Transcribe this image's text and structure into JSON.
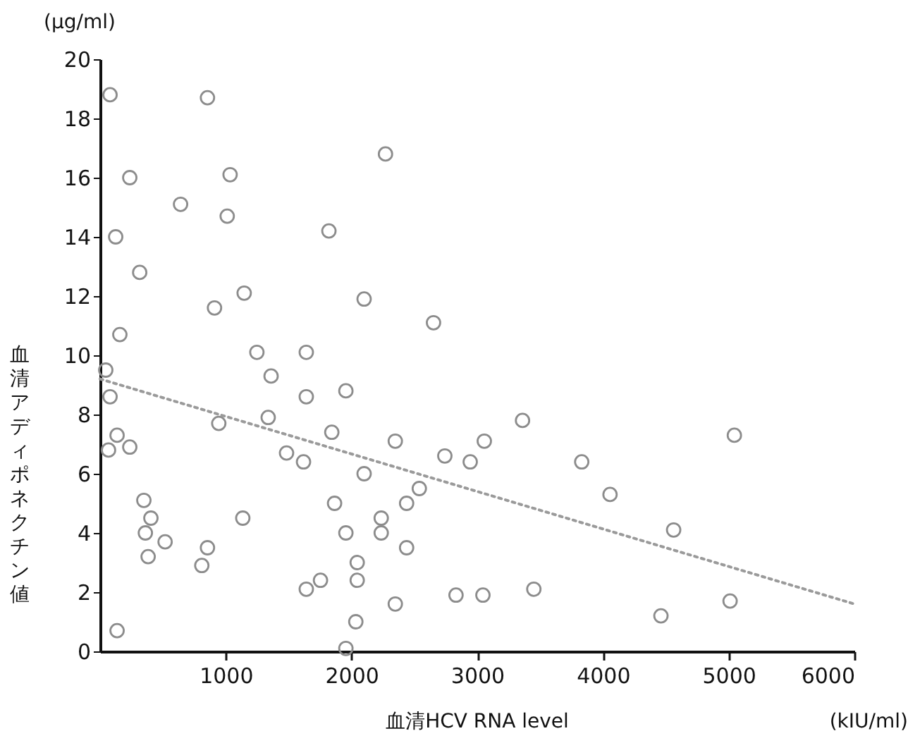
{
  "chart_data": {
    "type": "scatter",
    "xlabel": "血清HCV RNA level",
    "ylabel": "血清アディポネクチン値",
    "annotations": [
      "(μg/ml)",
      "(kIU/ml)"
    ],
    "xlim": [
      0,
      6000
    ],
    "xticks": [
      1000,
      2000,
      3000,
      4000,
      5000,
      6000
    ],
    "ylim": [
      0,
      20
    ],
    "yticks": [
      0,
      2,
      4,
      6,
      8,
      10,
      12,
      14,
      16,
      18,
      20
    ],
    "grid": false,
    "series": [
      {
        "marker": "circle",
        "color": "#8c8c8c",
        "x": [
          79,
          854,
          236,
          1034,
          640,
          1011,
          1820,
          124,
          315,
          1146,
          910,
          2100,
          157,
          1247,
          1640,
          2270,
          2652,
          45,
          1360,
          79,
          1640,
          1955,
          944,
          1337,
          135,
          1843,
          67,
          236,
          1483,
          1618,
          2100,
          348,
          1865,
          404,
          1135,
          360,
          1955,
          517,
          854,
          382,
          809,
          2045,
          2045,
          1640,
          1753,
          2034,
          135,
          1955,
          2348,
          3056,
          2742,
          2944,
          3360,
          2539,
          2438,
          2236,
          2236,
          2438,
          2348,
          2831,
          3045,
          3450,
          3831,
          5045,
          4056,
          4562,
          5011,
          4461
        ],
        "values": [
          18.8,
          18.7,
          16.0,
          16.1,
          15.1,
          14.7,
          14.2,
          14.0,
          12.8,
          12.1,
          11.6,
          11.9,
          10.7,
          10.1,
          10.1,
          16.8,
          11.1,
          9.5,
          9.3,
          8.6,
          8.6,
          8.8,
          7.7,
          7.9,
          7.3,
          7.4,
          6.8,
          6.9,
          6.7,
          6.4,
          6.0,
          5.1,
          5.0,
          4.5,
          4.5,
          4.0,
          4.0,
          3.7,
          3.5,
          3.2,
          2.9,
          3.0,
          2.4,
          2.1,
          2.4,
          1.0,
          0.7,
          0.1,
          7.1,
          7.1,
          6.6,
          6.4,
          7.8,
          5.5,
          5.0,
          4.5,
          4.0,
          3.5,
          1.6,
          1.9,
          1.9,
          2.1,
          6.4,
          7.3,
          5.3,
          4.1,
          1.7,
          1.2
        ]
      },
      {
        "type": "line",
        "color": "#9a9a9a",
        "line_style": "dotted",
        "x": [
          0,
          6000
        ],
        "values": [
          9.2,
          1.6
        ]
      }
    ]
  }
}
